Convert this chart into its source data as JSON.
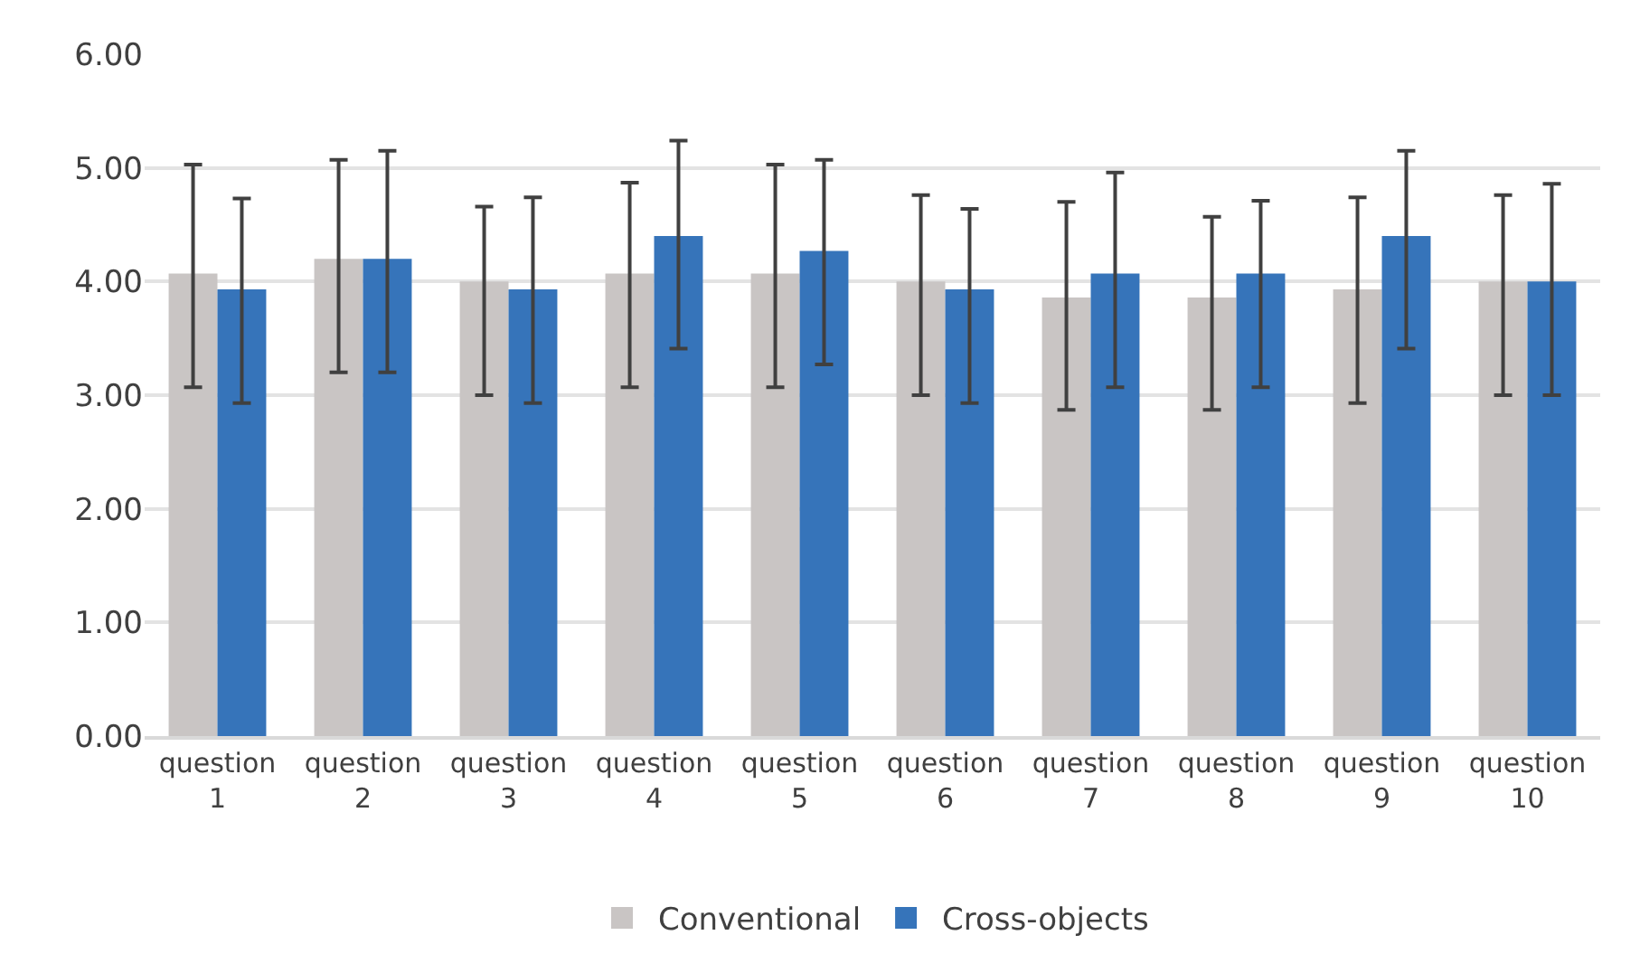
{
  "chart_data": {
    "type": "bar",
    "categories": [
      "question 1",
      "question 2",
      "question 3",
      "question 4",
      "question 5",
      "question 6",
      "question 7",
      "question 8",
      "question 9",
      "question 10"
    ],
    "series": [
      {
        "name": "Conventional",
        "color": "#c9c5c4",
        "values": [
          4.07,
          4.2,
          4.0,
          4.07,
          4.07,
          4.0,
          3.86,
          3.86,
          3.93,
          4.0
        ],
        "errors": [
          [
            3.07,
            5.03
          ],
          [
            3.2,
            5.07
          ],
          [
            3.0,
            4.66
          ],
          [
            3.07,
            4.87
          ],
          [
            3.07,
            5.03
          ],
          [
            3.0,
            4.76
          ],
          [
            2.87,
            4.7
          ],
          [
            2.87,
            4.57
          ],
          [
            2.93,
            4.74
          ],
          [
            3.0,
            4.76
          ]
        ]
      },
      {
        "name": "Cross-objects",
        "color": "#3674ba",
        "values": [
          3.93,
          4.2,
          3.93,
          4.4,
          4.27,
          3.93,
          4.07,
          4.07,
          4.4,
          4.0
        ],
        "errors": [
          [
            2.93,
            4.73
          ],
          [
            3.2,
            5.15
          ],
          [
            2.93,
            4.74
          ],
          [
            3.41,
            5.24
          ],
          [
            3.27,
            5.07
          ],
          [
            2.93,
            4.64
          ],
          [
            3.07,
            4.96
          ],
          [
            3.07,
            4.71
          ],
          [
            3.41,
            5.15
          ],
          [
            3.0,
            4.86
          ]
        ]
      }
    ],
    "ylim": [
      0,
      6
    ],
    "yticks": [
      {
        "value": 0,
        "label": "0.00"
      },
      {
        "value": 1,
        "label": "1.00"
      },
      {
        "value": 2,
        "label": "2.00"
      },
      {
        "value": 3,
        "label": "3.00"
      },
      {
        "value": 4,
        "label": "4.00"
      },
      {
        "value": 5,
        "label": "5.00"
      },
      {
        "value": 6,
        "label": "6.00"
      }
    ],
    "grid": "y",
    "legend": "bottom"
  }
}
